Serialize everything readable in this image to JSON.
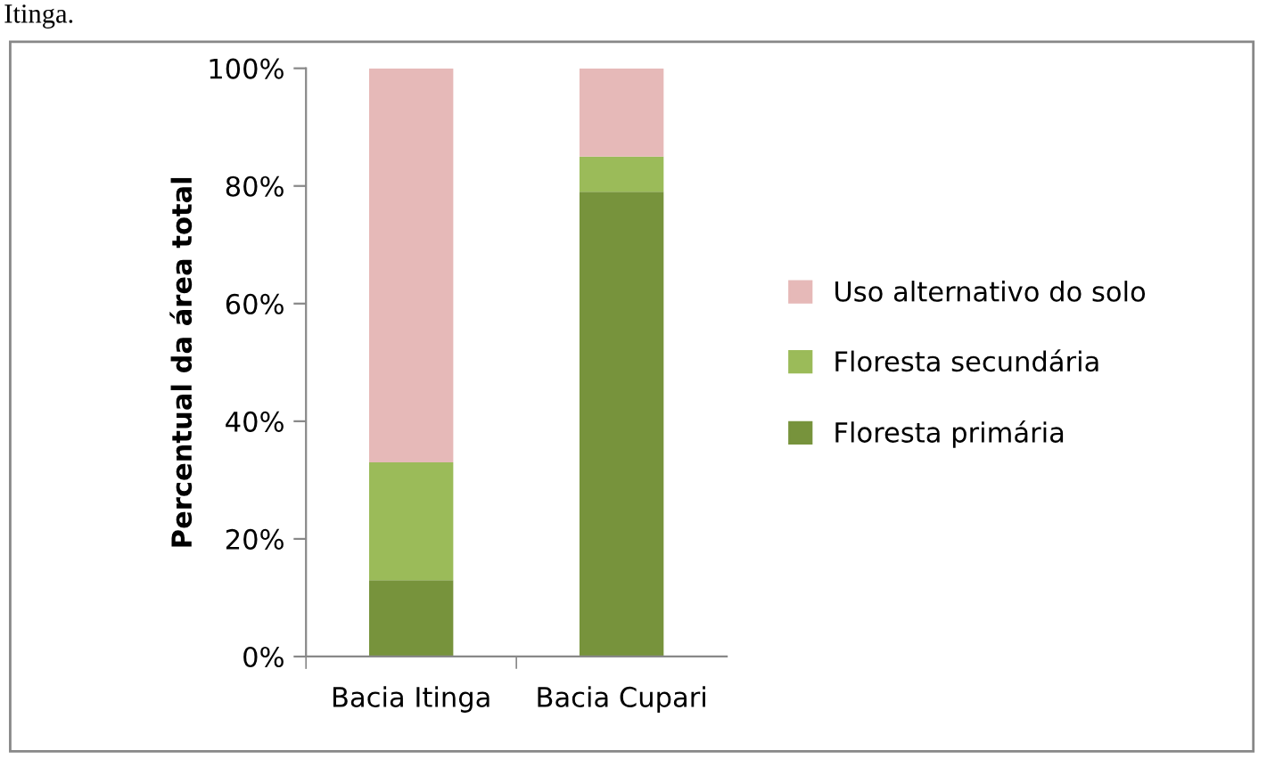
{
  "chart_data": {
    "type": "bar",
    "stacked": true,
    "ylabel": "Percentual da área total",
    "categories": [
      "Bacia Itinga",
      "Bacia Cupari"
    ],
    "series": [
      {
        "name": "Floresta primária",
        "color": "#77933c",
        "values": [
          13,
          79
        ]
      },
      {
        "name": "Floresta secundária",
        "color": "#9bbb59",
        "values": [
          20,
          6
        ]
      },
      {
        "name": "Uso alternativo do solo",
        "color": "#e6b9b8",
        "values": [
          67,
          15
        ]
      }
    ],
    "ylim": [
      0,
      100
    ],
    "yticks": [
      {
        "value": 0,
        "label": "0%"
      },
      {
        "value": 20,
        "label": "20%"
      },
      {
        "value": 40,
        "label": "40%"
      },
      {
        "value": 60,
        "label": "60%"
      },
      {
        "value": 80,
        "label": "80%"
      },
      {
        "value": 100,
        "label": "100%"
      }
    ],
    "grid": false,
    "legend": "right",
    "annotations": [
      "Itinga."
    ]
  }
}
